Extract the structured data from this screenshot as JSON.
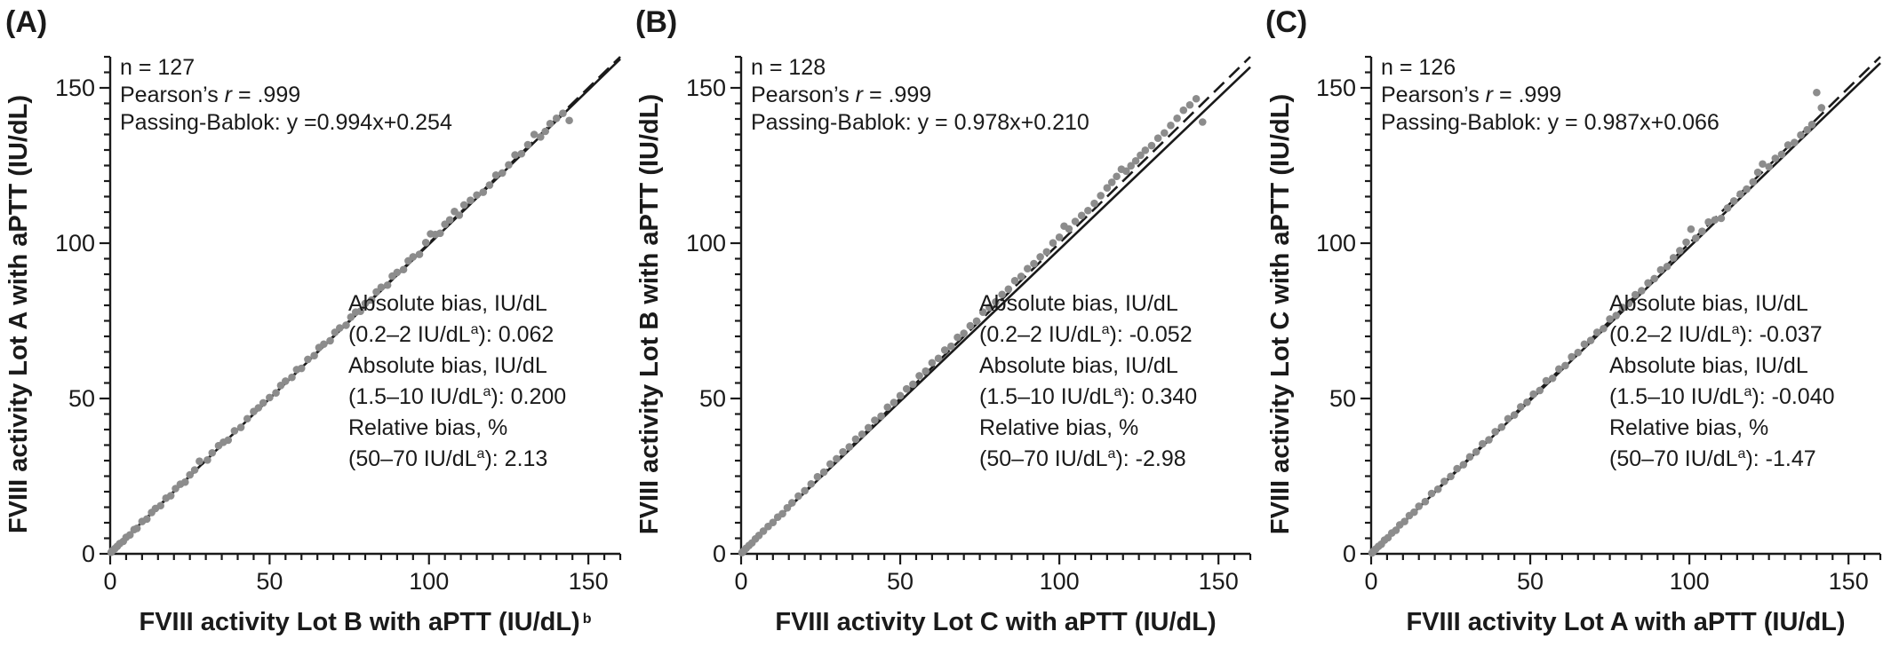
{
  "chart_data": [
    {
      "type": "scatter",
      "panel_label": "(A)",
      "xlabel": "FVIII activity Lot B with aPTT (IU/dL)",
      "xlabel_sup": "b",
      "ylabel": "FVIII activity Lot A with aPTT (IU/dL)",
      "xlim": [
        0,
        160
      ],
      "ylim": [
        0,
        160
      ],
      "xticks": [
        0,
        50,
        100,
        150
      ],
      "yticks": [
        0,
        50,
        100,
        150
      ],
      "minor_tick_step": 5,
      "stats_top": [
        "n = 127",
        "Pearson’s r = .999",
        "Passing-Bablok: y =0.994x+0.254"
      ],
      "bias": {
        "abs1_label": "Absolute bias, IU/dL",
        "abs1_range": "(0.2–2 IU/dL",
        "abs1_value": "): 0.062",
        "abs2_label": "Absolute bias, IU/dL",
        "abs2_range": "(1.5–10 IU/dL",
        "abs2_value": "): 0.200",
        "rel_label": "Relative bias, %",
        "rel_range": "(50–70 IU/dL",
        "rel_value": "): 2.13",
        "sup": "a"
      },
      "regression": {
        "slope": 0.994,
        "intercept": 0.254
      },
      "points": [
        [
          0.3,
          0.5
        ],
        [
          0.8,
          1.1
        ],
        [
          1.5,
          1.7
        ],
        [
          2.2,
          2.4
        ],
        [
          3.0,
          3.3
        ],
        [
          4.1,
          4.0
        ],
        [
          5.0,
          5.3
        ],
        [
          6.2,
          6.1
        ],
        [
          7.5,
          7.8
        ],
        [
          8.4,
          8.2
        ],
        [
          10.0,
          10.4
        ],
        [
          11.5,
          11.2
        ],
        [
          13.0,
          13.3
        ],
        [
          14.2,
          14.6
        ],
        [
          15.8,
          15.5
        ],
        [
          17.5,
          17.9
        ],
        [
          19.0,
          18.7
        ],
        [
          20.5,
          21.0
        ],
        [
          22.0,
          22.4
        ],
        [
          23.5,
          23.1
        ],
        [
          25.0,
          25.4
        ],
        [
          26.5,
          27.0
        ],
        [
          28.0,
          29.8
        ],
        [
          30.5,
          30.2
        ],
        [
          32.0,
          32.5
        ],
        [
          34.0,
          34.8
        ],
        [
          35.5,
          35.9
        ],
        [
          37.0,
          36.6
        ],
        [
          39.0,
          39.6
        ],
        [
          41.0,
          40.7
        ],
        [
          43.0,
          43.5
        ],
        [
          45.0,
          45.8
        ],
        [
          46.5,
          47.0
        ],
        [
          48.0,
          48.6
        ],
        [
          50.0,
          50.3
        ],
        [
          52.0,
          51.8
        ],
        [
          53.5,
          54.2
        ],
        [
          55.0,
          55.6
        ],
        [
          57.0,
          56.8
        ],
        [
          58.5,
          59.3
        ],
        [
          60.0,
          59.7
        ],
        [
          62.0,
          62.6
        ],
        [
          64.0,
          63.8
        ],
        [
          65.5,
          66.4
        ],
        [
          67.0,
          67.5
        ],
        [
          69.0,
          68.6
        ],
        [
          70.5,
          71.3
        ],
        [
          72.0,
          72.7
        ],
        [
          74.0,
          73.6
        ],
        [
          75.5,
          76.2
        ],
        [
          77.0,
          77.8
        ],
        [
          78.5,
          78.1
        ],
        [
          80.0,
          80.6
        ],
        [
          82.0,
          81.7
        ],
        [
          83.5,
          84.3
        ],
        [
          85.0,
          85.8
        ],
        [
          87.0,
          86.5
        ],
        [
          88.5,
          89.4
        ],
        [
          90.0,
          90.6
        ],
        [
          92.0,
          91.5
        ],
        [
          93.5,
          94.3
        ],
        [
          95.0,
          95.6
        ],
        [
          97.0,
          96.4
        ],
        [
          99.0,
          100.2
        ],
        [
          100.5,
          103.0
        ],
        [
          102.0,
          102.8
        ],
        [
          103.5,
          103.2
        ],
        [
          105.0,
          106.1
        ],
        [
          106.5,
          107.5
        ],
        [
          108.0,
          110.2
        ],
        [
          109.5,
          109.0
        ],
        [
          111.0,
          112.3
        ],
        [
          113.0,
          113.8
        ],
        [
          115.0,
          115.5
        ],
        [
          117.0,
          116.4
        ],
        [
          119.0,
          118.7
        ],
        [
          121.0,
          121.9
        ],
        [
          123.0,
          122.6
        ],
        [
          125.0,
          125.2
        ],
        [
          127.0,
          128.4
        ],
        [
          129.0,
          128.8
        ],
        [
          131.0,
          131.7
        ],
        [
          133.0,
          135.0
        ],
        [
          135.0,
          134.2
        ],
        [
          136.5,
          136.0
        ],
        [
          138.0,
          138.5
        ],
        [
          140.0,
          140.2
        ],
        [
          142.0,
          141.8
        ],
        [
          144.0,
          139.5
        ]
      ]
    },
    {
      "type": "scatter",
      "panel_label": "(B)",
      "xlabel": "FVIII activity Lot C with aPTT (IU/dL)",
      "xlabel_sup": "",
      "ylabel": "FVIII activity Lot B with aPTT (IU/dL)",
      "xlim": [
        0,
        160
      ],
      "ylim": [
        0,
        160
      ],
      "xticks": [
        0,
        50,
        100,
        150
      ],
      "yticks": [
        0,
        50,
        100,
        150
      ],
      "minor_tick_step": 5,
      "stats_top": [
        "n = 128",
        "Pearson’s r = .999",
        "Passing-Bablok: y = 0.978x+0.210"
      ],
      "bias": {
        "abs1_label": "Absolute bias, IU/dL",
        "abs1_range": "(0.2–2 IU/dL",
        "abs1_value": "): -0.052",
        "abs2_label": "Absolute bias, IU/dL",
        "abs2_range": "(1.5–10 IU/dL",
        "abs2_value": "): 0.340",
        "rel_label": "Relative bias, %",
        "rel_range": "(50–70 IU/dL",
        "rel_value": "): -2.98",
        "sup": "a"
      },
      "regression": {
        "slope": 0.978,
        "intercept": 0.21
      },
      "points": [
        [
          0.3,
          0.4
        ],
        [
          0.9,
          1.0
        ],
        [
          1.6,
          1.8
        ],
        [
          2.5,
          2.7
        ],
        [
          3.4,
          3.5
        ],
        [
          4.5,
          4.8
        ],
        [
          5.6,
          5.9
        ],
        [
          7.0,
          7.3
        ],
        [
          8.5,
          8.8
        ],
        [
          10.0,
          10.1
        ],
        [
          11.5,
          11.8
        ],
        [
          13.0,
          12.9
        ],
        [
          14.5,
          14.8
        ],
        [
          16.0,
          16.4
        ],
        [
          18.0,
          18.6
        ],
        [
          20.0,
          20.3
        ],
        [
          22.0,
          22.5
        ],
        [
          24.0,
          24.8
        ],
        [
          26.0,
          26.3
        ],
        [
          28.0,
          28.9
        ],
        [
          30.0,
          30.6
        ],
        [
          32.0,
          32.8
        ],
        [
          34.0,
          34.4
        ],
        [
          36.0,
          36.9
        ],
        [
          38.0,
          38.5
        ],
        [
          40.0,
          40.6
        ],
        [
          42.0,
          43.0
        ],
        [
          44.0,
          44.3
        ],
        [
          46.0,
          47.2
        ],
        [
          48.0,
          48.7
        ],
        [
          50.0,
          50.9
        ],
        [
          52.0,
          53.1
        ],
        [
          54.0,
          54.6
        ],
        [
          56.0,
          57.3
        ],
        [
          58.0,
          58.8
        ],
        [
          60.0,
          61.5
        ],
        [
          62.0,
          62.9
        ],
        [
          64.0,
          65.6
        ],
        [
          66.0,
          66.8
        ],
        [
          68.0,
          69.7
        ],
        [
          70.0,
          71.0
        ],
        [
          72.0,
          73.4
        ],
        [
          74.0,
          74.9
        ],
        [
          76.0,
          77.8
        ],
        [
          78.0,
          79.3
        ],
        [
          80.0,
          81.1
        ],
        [
          82.0,
          83.5
        ],
        [
          84.0,
          85.2
        ],
        [
          86.0,
          87.9
        ],
        [
          88.0,
          89.3
        ],
        [
          90.0,
          91.8
        ],
        [
          92.0,
          93.4
        ],
        [
          94.0,
          95.6
        ],
        [
          96.0,
          97.2
        ],
        [
          98.0,
          100.1
        ],
        [
          100.0,
          101.9
        ],
        [
          101.5,
          105.5
        ],
        [
          103.0,
          104.6
        ],
        [
          105.0,
          107.0
        ],
        [
          107.0,
          108.9
        ],
        [
          109.0,
          110.5
        ],
        [
          111.0,
          112.8
        ],
        [
          113.0,
          115.3
        ],
        [
          115.0,
          117.8
        ],
        [
          116.5,
          119.6
        ],
        [
          118.0,
          121.5
        ],
        [
          119.5,
          123.8
        ],
        [
          121.0,
          123.2
        ],
        [
          122.5,
          124.9
        ],
        [
          124.0,
          126.5
        ],
        [
          125.5,
          128.3
        ],
        [
          127.0,
          129.9
        ],
        [
          129.0,
          131.4
        ],
        [
          131.0,
          133.8
        ],
        [
          133.0,
          135.5
        ],
        [
          135.0,
          137.9
        ],
        [
          137.0,
          140.2
        ],
        [
          139.0,
          142.8
        ],
        [
          141.0,
          144.5
        ],
        [
          143.0,
          146.5
        ],
        [
          145.0,
          139.0
        ]
      ]
    },
    {
      "type": "scatter",
      "panel_label": "(C)",
      "xlabel": "FVIII activity Lot A with aPTT (IU/dL)",
      "xlabel_sup": "",
      "ylabel": "FVIII activity Lot C with aPTT (IU/dL)",
      "xlim": [
        0,
        160
      ],
      "ylim": [
        0,
        160
      ],
      "xticks": [
        0,
        50,
        100,
        150
      ],
      "yticks": [
        0,
        50,
        100,
        150
      ],
      "minor_tick_step": 5,
      "stats_top": [
        "n = 126",
        "Pearson’s r = .999",
        "Passing-Bablok: y = 0.987x+0.066"
      ],
      "bias": {
        "abs1_label": "Absolute bias, IU/dL",
        "abs1_range": "(0.2–2 IU/dL",
        "abs1_value": "): -0.037",
        "abs2_label": "Absolute bias, IU/dL",
        "abs2_range": "(1.5–10 IU/dL",
        "abs2_value": "): -0.040",
        "rel_label": "Relative bias, %",
        "rel_range": "(50–70 IU/dL",
        "rel_value": "): -1.47",
        "sup": "a"
      },
      "regression": {
        "slope": 0.987,
        "intercept": 0.066
      },
      "points": [
        [
          0.3,
          0.3
        ],
        [
          0.8,
          0.9
        ],
        [
          1.5,
          1.6
        ],
        [
          2.3,
          2.4
        ],
        [
          3.2,
          3.1
        ],
        [
          4.2,
          4.4
        ],
        [
          5.3,
          5.2
        ],
        [
          6.5,
          6.7
        ],
        [
          7.8,
          7.6
        ],
        [
          9.0,
          9.3
        ],
        [
          10.5,
          10.4
        ],
        [
          12.0,
          12.3
        ],
        [
          13.5,
          13.4
        ],
        [
          15.0,
          15.3
        ],
        [
          17.0,
          16.8
        ],
        [
          19.0,
          19.4
        ],
        [
          21.0,
          20.8
        ],
        [
          23.0,
          23.3
        ],
        [
          25.0,
          24.9
        ],
        [
          27.0,
          27.4
        ],
        [
          29.0,
          28.7
        ],
        [
          31.0,
          31.2
        ],
        [
          33.0,
          32.8
        ],
        [
          35.0,
          35.4
        ],
        [
          37.0,
          36.7
        ],
        [
          39.0,
          39.3
        ],
        [
          41.0,
          40.8
        ],
        [
          43.0,
          43.5
        ],
        [
          45.0,
          44.7
        ],
        [
          47.0,
          47.3
        ],
        [
          49.0,
          48.8
        ],
        [
          51.0,
          51.4
        ],
        [
          53.0,
          52.6
        ],
        [
          55.0,
          55.7
        ],
        [
          57.0,
          56.5
        ],
        [
          59.0,
          59.5
        ],
        [
          61.0,
          60.6
        ],
        [
          63.0,
          63.4
        ],
        [
          65.0,
          64.8
        ],
        [
          67.0,
          67.5
        ],
        [
          69.0,
          68.7
        ],
        [
          71.0,
          71.3
        ],
        [
          73.0,
          72.5
        ],
        [
          75.0,
          75.6
        ],
        [
          77.0,
          76.7
        ],
        [
          79.0,
          79.3
        ],
        [
          81.0,
          80.6
        ],
        [
          83.0,
          83.4
        ],
        [
          85.0,
          84.7
        ],
        [
          87.0,
          87.2
        ],
        [
          89.0,
          88.6
        ],
        [
          91.0,
          91.4
        ],
        [
          93.0,
          92.5
        ],
        [
          95.0,
          95.3
        ],
        [
          97.0,
          97.6
        ],
        [
          99.0,
          100.3
        ],
        [
          100.5,
          104.5
        ],
        [
          102.0,
          101.6
        ],
        [
          104.0,
          103.8
        ],
        [
          106.0,
          106.8
        ],
        [
          108.0,
          107.5
        ],
        [
          110.0,
          108.0
        ],
        [
          112.0,
          111.3
        ],
        [
          114.0,
          113.6
        ],
        [
          116.0,
          115.8
        ],
        [
          118.0,
          117.4
        ],
        [
          120.0,
          119.7
        ],
        [
          121.5,
          122.8
        ],
        [
          123.0,
          125.5
        ],
        [
          125.0,
          124.6
        ],
        [
          127.0,
          127.3
        ],
        [
          129.0,
          128.6
        ],
        [
          131.0,
          131.6
        ],
        [
          133.0,
          132.4
        ],
        [
          135.0,
          134.8
        ],
        [
          137.0,
          136.5
        ],
        [
          138.5,
          138.2
        ],
        [
          140.0,
          148.5
        ],
        [
          141.5,
          143.6
        ]
      ]
    }
  ]
}
